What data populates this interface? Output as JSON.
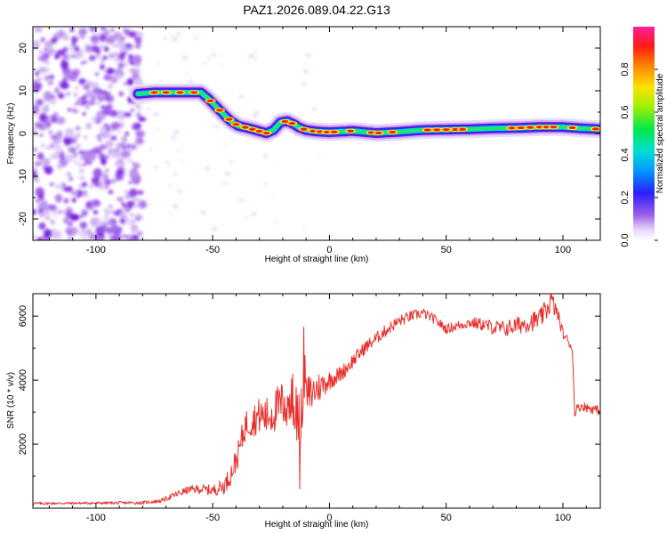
{
  "title": "PAZ1.2026.089.04.22.G13",
  "colors": {
    "background": "#ffffff",
    "axis": "#000000",
    "snr_line": "#e8302c"
  },
  "chart_data": [
    {
      "type": "heatmap",
      "name": "spectrogram",
      "xlabel": "Height of straight line (km)",
      "ylabel": "Frequency (Hz)",
      "xlim": [
        -127,
        116
      ],
      "ylim": [
        -25,
        25
      ],
      "xticks": [
        -100,
        -50,
        0,
        50,
        100
      ],
      "yticks": [
        -20,
        -10,
        0,
        10,
        20
      ],
      "colormap": [
        "#ffffff",
        "#c9a6f2",
        "#7b1fe0",
        "#1f2bff",
        "#00d7ff",
        "#00e86b",
        "#7cf000",
        "#ffe600",
        "#ff7f00",
        "#ff1e10",
        "#ff1fa0"
      ],
      "ridge": {
        "height_km": [
          -82,
          -75,
          -68,
          -60,
          -55,
          -52,
          -48,
          -45,
          -42,
          -39,
          -35,
          -31,
          -27,
          -24,
          -21,
          -18,
          -15,
          -13,
          -10,
          -6,
          0,
          10,
          20,
          30,
          40,
          50,
          60,
          70,
          80,
          90,
          100,
          108,
          116
        ],
        "frequency_hz": [
          9.3,
          9.6,
          9.6,
          9.6,
          9.6,
          8.2,
          6.0,
          4.3,
          2.8,
          1.8,
          1.3,
          0.7,
          0.1,
          0.8,
          2.6,
          2.9,
          2.1,
          1.4,
          0.8,
          0.5,
          0.3,
          0.6,
          0.1,
          0.4,
          0.8,
          0.9,
          1.0,
          1.2,
          1.3,
          1.5,
          1.5,
          1.2,
          1.0
        ]
      },
      "colorbar": {
        "label": "Normalized spectral amplitude",
        "range": [
          0,
          1
        ],
        "ticks": [
          "0.0",
          "0.2",
          "0.4",
          "0.6",
          "0.8"
        ],
        "tick_values": [
          0,
          0.2,
          0.4,
          0.6,
          0.8
        ]
      }
    },
    {
      "type": "line",
      "name": "snr",
      "xlabel": "Height of straight line (km)",
      "ylabel": "SNR (10 * v/v)",
      "xlim": [
        -127,
        116
      ],
      "ylim": [
        0,
        6700
      ],
      "xticks": [
        -100,
        -50,
        0,
        50,
        100
      ],
      "yticks": [
        2000,
        4000,
        6000
      ],
      "series": [
        {
          "name": "SNR",
          "x": [
            -127,
            -100,
            -80,
            -72,
            -65,
            -60,
            -55,
            -50,
            -45,
            -42,
            -39,
            -38,
            -36,
            -33,
            -30,
            -27,
            -24,
            -21,
            -18,
            -16,
            -13,
            -11,
            -9,
            -6,
            -3,
            0,
            5,
            10,
            15,
            20,
            25,
            30,
            35,
            40,
            45,
            50,
            55,
            60,
            65,
            70,
            75,
            80,
            85,
            90,
            93,
            95,
            98,
            100,
            102,
            104,
            105,
            106,
            108,
            110,
            113,
            116
          ],
          "y": [
            150,
            160,
            170,
            230,
            450,
            580,
            600,
            550,
            700,
            1100,
            1700,
            2000,
            2600,
            2750,
            2900,
            2850,
            3000,
            3200,
            3300,
            3400,
            2700,
            3300,
            3500,
            3700,
            3850,
            4000,
            4200,
            4600,
            5000,
            5300,
            5600,
            5850,
            6000,
            6100,
            5900,
            5600,
            5700,
            5800,
            5750,
            5650,
            5600,
            5700,
            5800,
            5900,
            6200,
            6500,
            6000,
            5450,
            5250,
            5000,
            3000,
            3100,
            3200,
            3150,
            3100,
            3050
          ],
          "noise_amplitude": [
            40,
            40,
            50,
            60,
            110,
            120,
            150,
            170,
            250,
            350,
            420,
            450,
            480,
            520,
            560,
            620,
            680,
            750,
            850,
            880,
            920,
            820,
            700,
            560,
            420,
            300,
            250,
            230,
            210,
            200,
            190,
            180,
            170,
            160,
            150,
            150,
            160,
            170,
            200,
            230,
            260,
            280,
            300,
            320,
            340,
            360,
            220,
            170,
            150,
            140,
            140,
            150,
            150,
            150,
            150,
            150
          ]
        }
      ]
    }
  ]
}
